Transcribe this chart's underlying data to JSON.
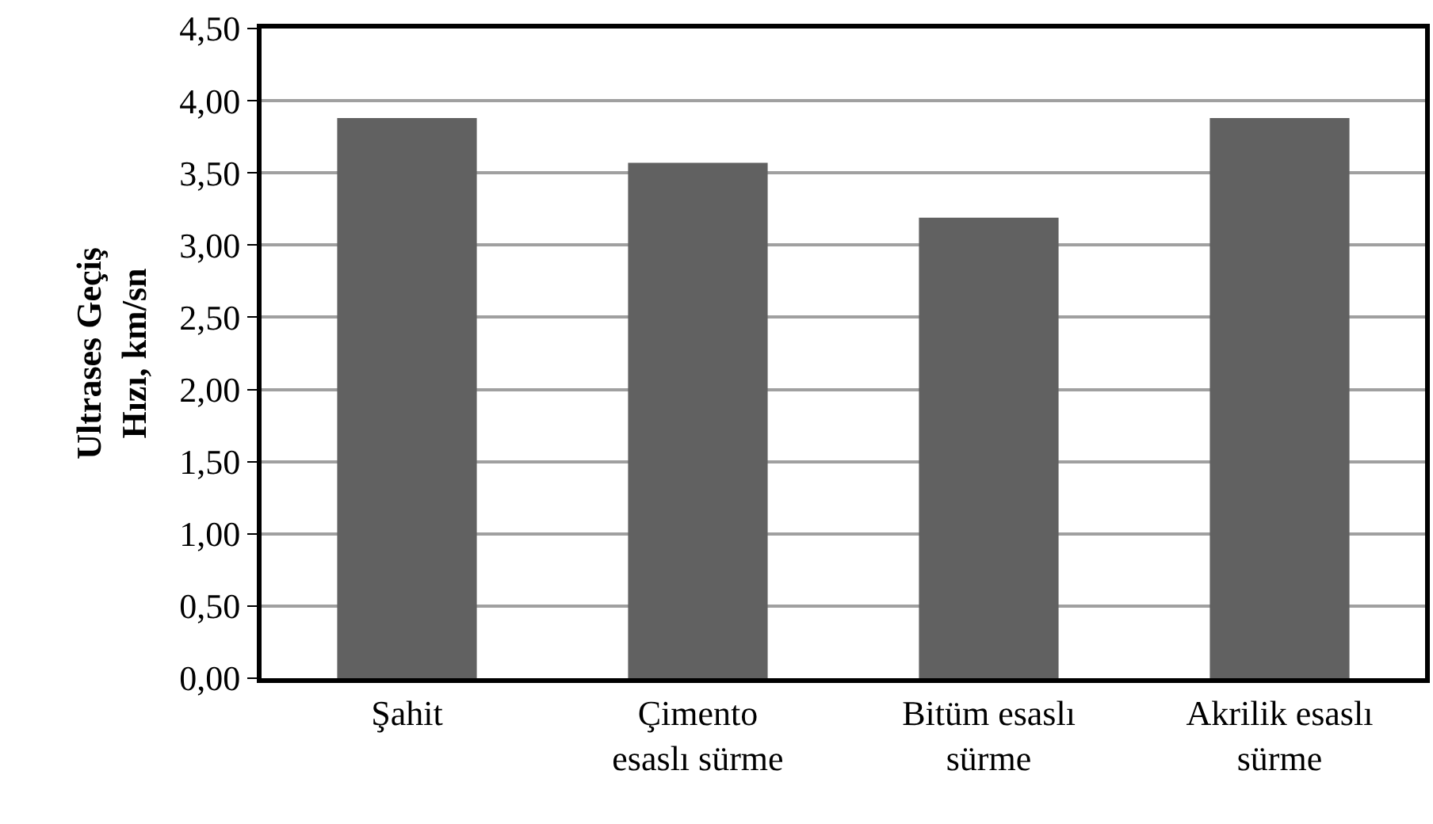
{
  "chart_data": {
    "type": "bar",
    "ylabel": "Ultrases Geçiş\nHızı, km/sn",
    "categories": [
      "Şahit",
      "Çimento\nesaslı sürme",
      "Bitüm esaslı\nsürme",
      "Akrilik esaslı\nsürme"
    ],
    "values": [
      3.88,
      3.57,
      3.19,
      3.88
    ],
    "color": "#616161",
    "ylim": [
      0,
      4.5
    ],
    "yticks": [
      {
        "value": 0,
        "label": "0,00"
      },
      {
        "value": 0.5,
        "label": "0,50"
      },
      {
        "value": 1,
        "label": "1,00"
      },
      {
        "value": 1.5,
        "label": "1,50"
      },
      {
        "value": 2,
        "label": "2,00"
      },
      {
        "value": 2.5,
        "label": "2,50"
      },
      {
        "value": 3,
        "label": "3,00"
      },
      {
        "value": 3.5,
        "label": "3,50"
      },
      {
        "value": 4,
        "label": "4,00"
      },
      {
        "value": 4.5,
        "label": "4,50"
      }
    ],
    "grid": "y"
  }
}
